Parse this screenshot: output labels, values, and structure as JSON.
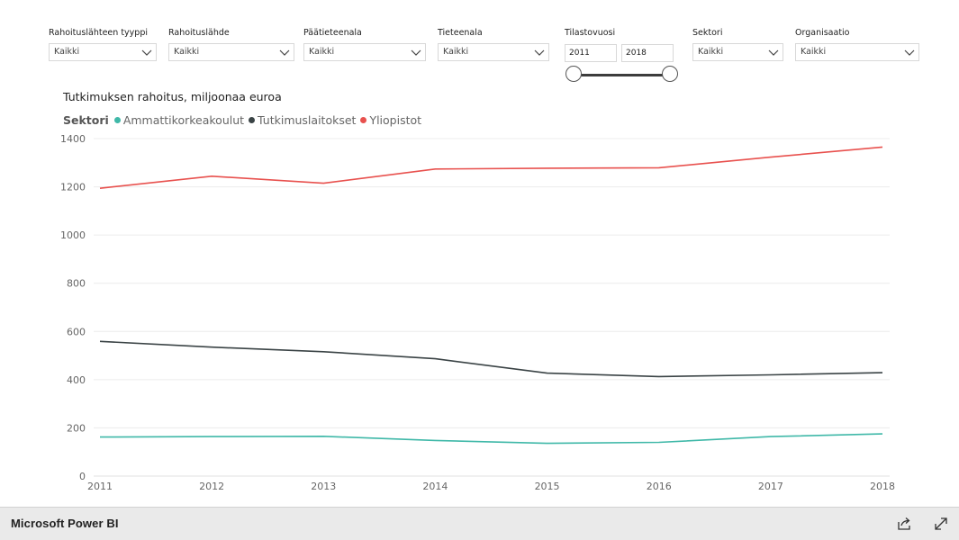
{
  "filters": [
    {
      "label": "Rahoituslähteen tyyppi",
      "value": "Kaikki"
    },
    {
      "label": "Rahoituslähde",
      "value": "Kaikki"
    },
    {
      "label": "Päätieteenala",
      "value": "Kaikki"
    },
    {
      "label": "Tieteenala",
      "value": "Kaikki"
    },
    {
      "label": "Sektori",
      "value": "Kaikki"
    },
    {
      "label": "Organisaatio",
      "value": "Kaikki"
    }
  ],
  "year_filter": {
    "label": "Tilastovuosi",
    "from": "2011",
    "to": "2018"
  },
  "footer": {
    "brand": "Microsoft Power BI"
  },
  "icons": {
    "share": "share-icon",
    "fullscreen": "fullscreen-icon",
    "dropdown": "chevron-down-icon"
  },
  "chart_data": {
    "type": "line",
    "title": "Tutkimuksen rahoitus, miljoonaa euroa",
    "legend_title": "Sektori",
    "legend_position": "top-left",
    "grid": true,
    "x": [
      "2011",
      "2012",
      "2013",
      "2014",
      "2015",
      "2016",
      "2017",
      "2018"
    ],
    "ylim": [
      0,
      1400
    ],
    "yticks": [
      "0",
      "200",
      "400",
      "600",
      "800",
      "1000",
      "1200",
      "1400"
    ],
    "series": [
      {
        "name": "Ammattikorkeakoulut",
        "color": "#3fb8a8",
        "values": [
          162,
          164,
          165,
          148,
          136,
          140,
          164,
          175
        ]
      },
      {
        "name": "Tutkimuslaitokset",
        "color": "#3a4345",
        "values": [
          559,
          535,
          516,
          487,
          427,
          413,
          420,
          429
        ]
      },
      {
        "name": "Yliopistot",
        "color": "#e8514e",
        "values": [
          1194,
          1244,
          1215,
          1274,
          1277,
          1279,
          1323,
          1365
        ]
      }
    ]
  }
}
